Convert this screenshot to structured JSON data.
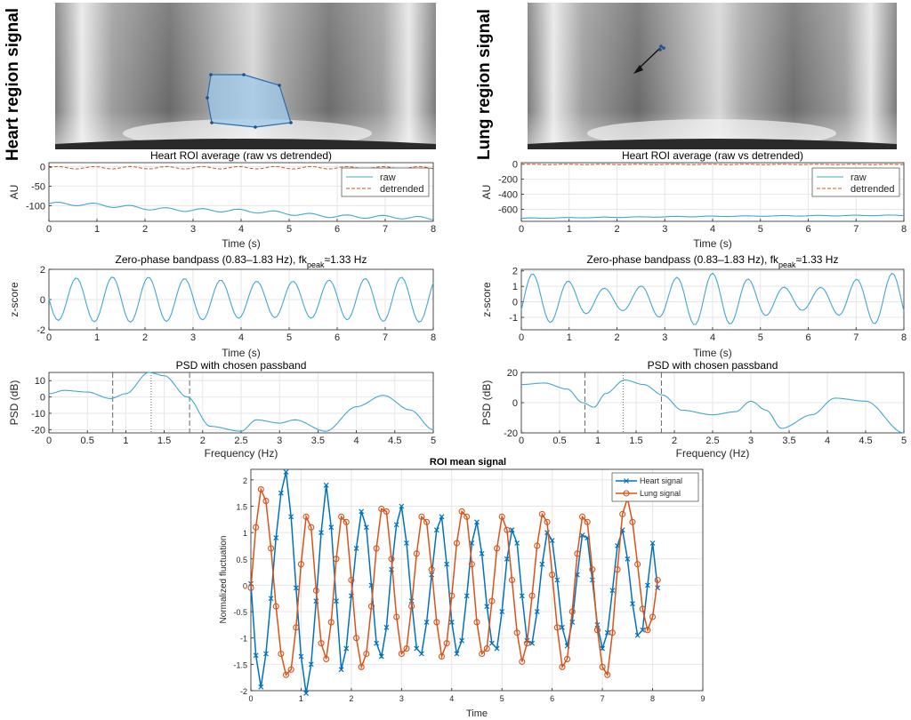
{
  "colors": {
    "blue": "#0072BD",
    "orange": "#D95319",
    "trace": "#3FA7D6",
    "dashed_orange": "#D95319",
    "grid": "#e6e6e6",
    "roi_fill": "#9cc8e8",
    "roi_edge": "#2a6fb0"
  },
  "left": {
    "side_title": "Heart region signal",
    "plot1": {
      "title": "Heart ROI average (raw vs detrended)",
      "xlabel": "Time (s)",
      "ylabel": "AU",
      "xlim": [
        0,
        8
      ],
      "ylim": [
        -140,
        10
      ],
      "xticks": [
        "0",
        "1",
        "2",
        "3",
        "4",
        "5",
        "6",
        "7",
        "8"
      ],
      "yticks": [
        "0",
        "-50",
        "-100"
      ],
      "legend": [
        "raw",
        "detrended"
      ]
    },
    "plot2": {
      "title": "Zero-phase bandpass (0.83–1.83 Hz), fk",
      "title_sub": "peak",
      "title_tail": "≈1.33 Hz",
      "xlabel": "Time (s)",
      "ylabel": "z-score",
      "xlim": [
        0,
        8
      ],
      "ylim": [
        -2,
        2
      ],
      "xticks": [
        "0",
        "1",
        "2",
        "3",
        "4",
        "5",
        "6",
        "7",
        "8"
      ],
      "yticks": [
        "2",
        "0",
        "-2"
      ]
    },
    "plot3": {
      "title": "PSD with chosen passband",
      "xlabel": "Frequency (Hz)",
      "ylabel": "PSD (dB)",
      "xlim": [
        0,
        5
      ],
      "ylim": [
        -22,
        15
      ],
      "xticks": [
        "0",
        "0.5",
        "1",
        "1.5",
        "2",
        "2.5",
        "3",
        "3.5",
        "4",
        "4.5",
        "5"
      ],
      "yticks": [
        "10",
        "0",
        "-10",
        "-20"
      ],
      "markers": [
        0.83,
        1.33,
        1.83
      ]
    }
  },
  "right": {
    "side_title": "Lung region signal",
    "plot1": {
      "title": "Heart ROI average (raw vs detrended)",
      "xlabel": "Time (s)",
      "ylabel": "AU",
      "xlim": [
        0,
        8
      ],
      "ylim": [
        -760,
        20
      ],
      "xticks": [
        "0",
        "1",
        "2",
        "3",
        "4",
        "5",
        "6",
        "7",
        "8"
      ],
      "yticks": [
        "0",
        "-200",
        "-400",
        "-600"
      ],
      "legend": [
        "raw",
        "detrended"
      ]
    },
    "plot2": {
      "title": "Zero-phase bandpass (0.83–1.83 Hz), fk",
      "title_sub": "peak",
      "title_tail": "≈1.33 Hz",
      "xlabel": "Time (s)",
      "ylabel": "z-score",
      "xlim": [
        0,
        8
      ],
      "ylim": [
        -1.8,
        2.1
      ],
      "xticks": [
        "0",
        "1",
        "2",
        "3",
        "4",
        "5",
        "6",
        "7",
        "8"
      ],
      "yticks": [
        "2",
        "1",
        "0",
        "-1"
      ]
    },
    "plot3": {
      "title": "PSD with chosen passband",
      "xlabel": "Frequency (Hz)",
      "ylabel": "PSD (dB)",
      "xlim": [
        0,
        5
      ],
      "ylim": [
        -20,
        20
      ],
      "xticks": [
        "0",
        "0.5",
        "1",
        "1.5",
        "2",
        "2.5",
        "3",
        "3.5",
        "4",
        "4.5",
        "5"
      ],
      "yticks": [
        "20",
        "0",
        "-20"
      ],
      "markers": [
        0.83,
        1.33,
        1.83
      ]
    }
  },
  "chart_data": {
    "type": "line",
    "title": "ROI mean signal",
    "xlabel": "Time",
    "ylabel": "Normalized fluctuation",
    "xlim": [
      0,
      9
    ],
    "ylim": [
      -2,
      2.2
    ],
    "xticks": [
      "0",
      "1",
      "2",
      "3",
      "4",
      "5",
      "6",
      "7",
      "8",
      "9"
    ],
    "yticks": [
      "2",
      "1.5",
      "1",
      "0.5",
      "0",
      "-0.5",
      "-1",
      "-1.5",
      "-2"
    ],
    "legend_position": "top-right",
    "series": [
      {
        "name": "Heart signal",
        "marker": "x",
        "x": [
          0,
          0.1,
          0.2,
          0.3,
          0.4,
          0.5,
          0.6,
          0.7,
          0.8,
          0.9,
          1,
          1.1,
          1.2,
          1.3,
          1.4,
          1.5,
          1.6,
          1.7,
          1.8,
          1.9,
          2,
          2.1,
          2.2,
          2.3,
          2.4,
          2.5,
          2.6,
          2.7,
          2.8,
          2.9,
          3,
          3.1,
          3.2,
          3.3,
          3.4,
          3.5,
          3.6,
          3.7,
          3.8,
          3.9,
          4,
          4.1,
          4.2,
          4.3,
          4.4,
          4.5,
          4.6,
          4.7,
          4.8,
          4.9,
          5,
          5.1,
          5.2,
          5.3,
          5.4,
          5.5,
          5.6,
          5.7,
          5.8,
          5.9,
          6,
          6.1,
          6.2,
          6.3,
          6.4,
          6.5,
          6.6,
          6.7,
          6.8,
          6.9,
          7,
          7.1,
          7.2,
          7.3,
          7.4,
          7.5,
          7.6,
          7.7,
          7.8,
          7.9,
          8,
          8.1
        ],
        "y": [
          0.03,
          -1.33,
          -1.93,
          -1.3,
          -0.25,
          0.9,
          1.75,
          2.15,
          1.3,
          -0.05,
          -1.35,
          -2.05,
          -1.5,
          -0.3,
          1,
          1.9,
          1.1,
          -0.3,
          -1.6,
          -1.2,
          -0.2,
          0.7,
          1.4,
          1.1,
          0,
          -1.1,
          -1.35,
          -0.8,
          0.3,
          1.15,
          1.5,
          0.8,
          -0.3,
          -1.2,
          -1.3,
          -0.7,
          0.2,
          1.05,
          1.3,
          0.4,
          -0.7,
          -1.3,
          -1.05,
          -0.2,
          0.8,
          1.2,
          0.6,
          -0.4,
          -1.1,
          -1.2,
          -0.5,
          0.5,
          1.05,
          0.8,
          -0.2,
          -1.05,
          -1.1,
          -0.5,
          0.4,
          1.0,
          0.85,
          0.1,
          -0.8,
          -1.15,
          -0.7,
          0.2,
          0.95,
          0.9,
          0.1,
          -0.75,
          -1.2,
          -0.9,
          -0.1,
          0.75,
          1.05,
          0.5,
          -0.35,
          -0.95,
          -0.85,
          0.0,
          0.8,
          -0.05
        ]
      },
      {
        "name": "Lung signal",
        "marker": "o",
        "x": [
          0,
          0.1,
          0.2,
          0.3,
          0.4,
          0.5,
          0.6,
          0.7,
          0.8,
          0.9,
          1,
          1.1,
          1.2,
          1.3,
          1.4,
          1.5,
          1.6,
          1.7,
          1.8,
          1.9,
          2,
          2.1,
          2.2,
          2.3,
          2.4,
          2.5,
          2.6,
          2.7,
          2.8,
          2.9,
          3,
          3.1,
          3.2,
          3.3,
          3.4,
          3.5,
          3.6,
          3.7,
          3.8,
          3.9,
          4,
          4.1,
          4.2,
          4.3,
          4.4,
          4.5,
          4.6,
          4.7,
          4.8,
          4.9,
          5,
          5.1,
          5.2,
          5.3,
          5.4,
          5.5,
          5.6,
          5.7,
          5.8,
          5.9,
          6,
          6.1,
          6.2,
          6.3,
          6.4,
          6.5,
          6.6,
          6.7,
          6.8,
          6.9,
          7,
          7.1,
          7.2,
          7.3,
          7.4,
          7.5,
          7.6,
          7.7,
          7.8,
          7.9,
          8,
          8.1
        ],
        "y": [
          -0.05,
          1.1,
          1.82,
          1.6,
          0.7,
          -0.4,
          -1.3,
          -1.7,
          -1.6,
          -0.8,
          0.4,
          1.3,
          1.1,
          -0.1,
          -1.1,
          -1.4,
          -0.7,
          0.5,
          1.3,
          1.2,
          0.1,
          -1,
          -1.55,
          -1.3,
          -0.4,
          0.7,
          1.45,
          1.4,
          0.5,
          -0.6,
          -1.3,
          -1.2,
          -0.4,
          0.6,
          1.3,
          1.2,
          0.3,
          -0.7,
          -1.35,
          -1.1,
          -0.2,
          0.8,
          1.4,
          1.3,
          0.4,
          -0.7,
          -1.3,
          -1.2,
          -0.3,
          0.7,
          1.3,
          1.05,
          0.1,
          -0.9,
          -1.45,
          -1.1,
          -0.2,
          0.75,
          1.35,
          1.2,
          0.2,
          -0.8,
          -1.55,
          -1.4,
          -0.5,
          0.6,
          1.3,
          1.2,
          0.3,
          -0.85,
          -1.55,
          -1.7,
          -0.9,
          0.3,
          1.35,
          1.65,
          1.2,
          0.4,
          -0.45,
          -0.85,
          -0.6,
          0.1
        ]
      }
    ]
  }
}
